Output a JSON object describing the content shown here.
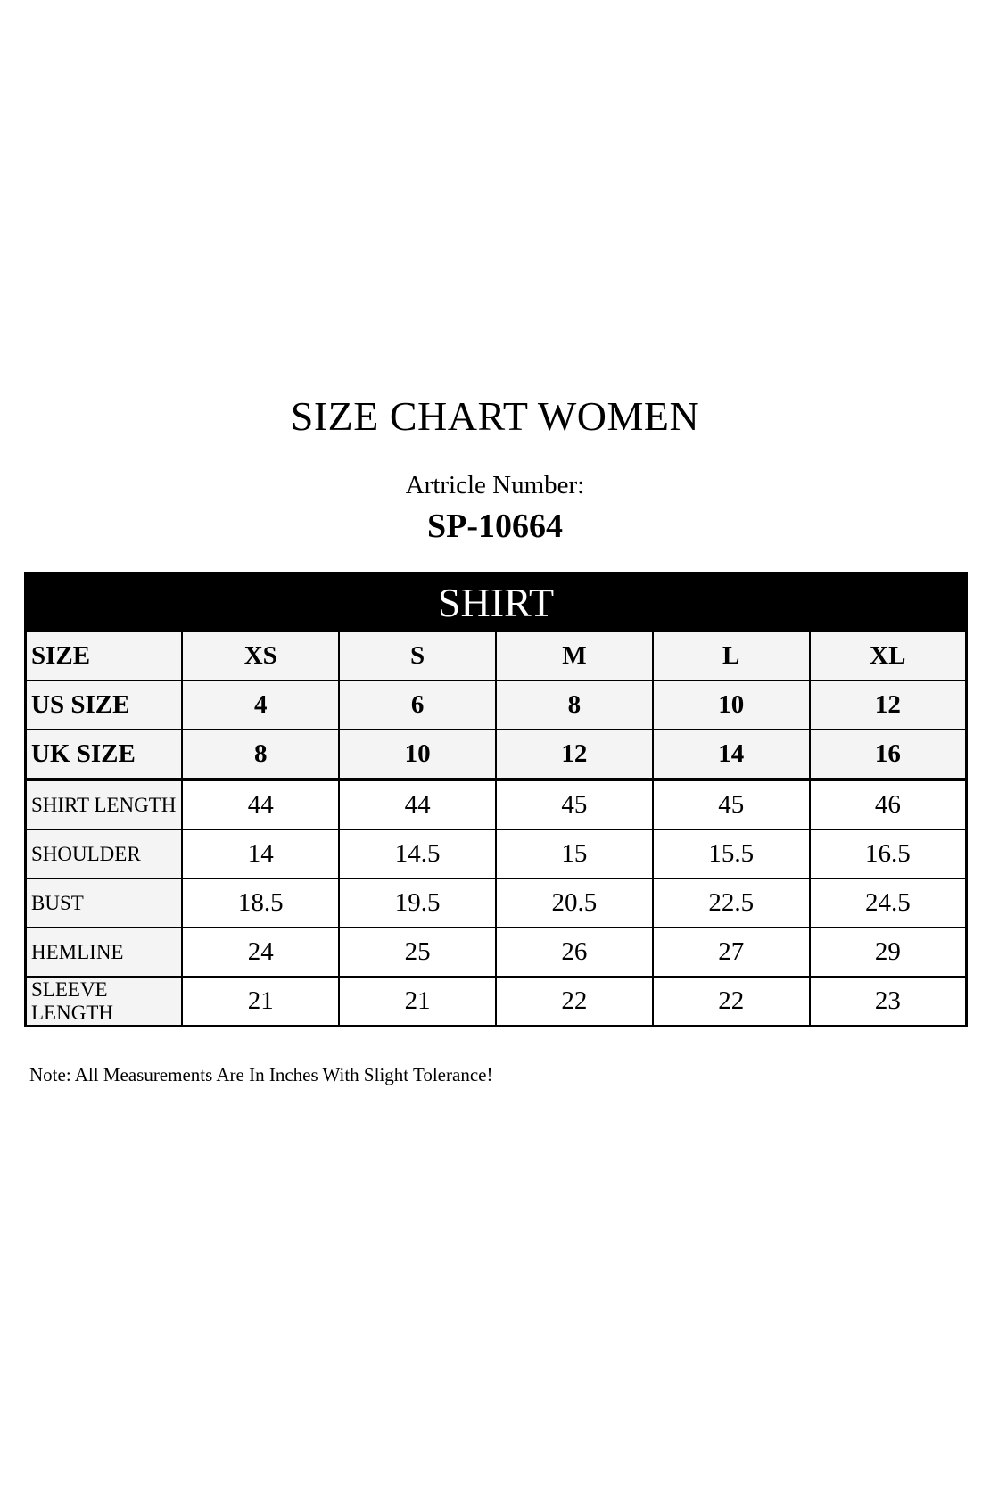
{
  "title": "SIZE CHART WOMEN",
  "article_label": "Artricle Number:",
  "article_number": "SP-10664",
  "section": "SHIRT",
  "header_rows": [
    {
      "label": "SIZE",
      "values": [
        "XS",
        "S",
        "M",
        "L",
        "XL"
      ]
    },
    {
      "label": "US SIZE",
      "values": [
        "4",
        "6",
        "8",
        "10",
        "12"
      ]
    },
    {
      "label": "UK SIZE",
      "values": [
        "8",
        "10",
        "12",
        "14",
        "16"
      ]
    }
  ],
  "measurement_rows": [
    {
      "label": "SHIRT LENGTH",
      "values": [
        "44",
        "44",
        "45",
        "45",
        "46"
      ]
    },
    {
      "label": "SHOULDER",
      "values": [
        "14",
        "14.5",
        "15",
        "15.5",
        "16.5"
      ]
    },
    {
      "label": "BUST",
      "values": [
        "18.5",
        "19.5",
        "20.5",
        "22.5",
        "24.5"
      ]
    },
    {
      "label": "HEMLINE",
      "values": [
        "24",
        "25",
        "26",
        "27",
        "29"
      ]
    },
    {
      "label": "SLEEVE LENGTH",
      "values": [
        "21",
        "21",
        "22",
        "22",
        "23"
      ]
    }
  ],
  "note": "Note: All Measurements Are In Inches With Slight Tolerance!"
}
